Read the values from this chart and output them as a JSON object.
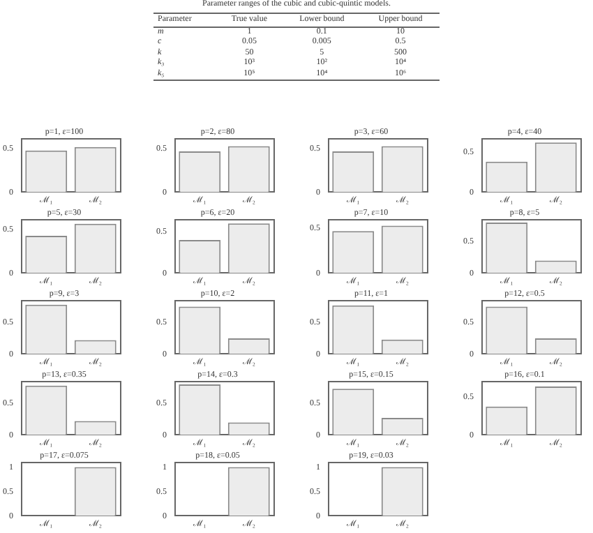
{
  "chart_data": [
    {
      "type": "other",
      "title": "Parameter ranges of the cubic and cubic-quintic models.",
      "annotations": [
        "Parameter",
        "True value",
        "Lower bound",
        "Upper bound",
        "m",
        "1",
        "0.1",
        "10",
        "c",
        "0.05",
        "0.005",
        "0.5",
        "k",
        "50",
        "5",
        "500",
        "k₃",
        "10³",
        "10²",
        "10⁴",
        "k₅",
        "10⁵",
        "10⁴",
        "10⁶"
      ]
    },
    {
      "type": "bar",
      "title": "p=1, ε=100",
      "categories": [
        "ℳ₁",
        "ℳ₂"
      ],
      "values": [
        0.48,
        0.52
      ],
      "color": "#ececec",
      "ylim": [
        0,
        0.62
      ],
      "yticks": [
        0,
        0.5
      ]
    },
    {
      "type": "bar",
      "title": "p=2, ε=80",
      "categories": [
        "ℳ₁",
        "ℳ₂"
      ],
      "values": [
        0.47,
        0.53
      ],
      "color": "#ececec",
      "ylim": [
        0,
        0.62
      ],
      "yticks": [
        0,
        0.5
      ]
    },
    {
      "type": "bar",
      "title": "p=3, ε=60",
      "categories": [
        "ℳ₁",
        "ℳ₂"
      ],
      "values": [
        0.47,
        0.53
      ],
      "color": "#ececec",
      "ylim": [
        0,
        0.62
      ],
      "yticks": [
        0,
        0.5
      ]
    },
    {
      "type": "bar",
      "title": "p=4, ε=40",
      "categories": [
        "ℳ₁",
        "ℳ₂"
      ],
      "values": [
        0.38,
        0.62
      ],
      "color": "#ececec",
      "ylim": [
        0,
        0.67
      ],
      "yticks": [
        0,
        0.5
      ]
    },
    {
      "type": "bar",
      "title": "p=5, ε=30",
      "categories": [
        "ℳ₁",
        "ℳ₂"
      ],
      "values": [
        0.43,
        0.57
      ],
      "color": "#ececec",
      "ylim": [
        0,
        0.62
      ],
      "yticks": [
        0,
        0.5
      ]
    },
    {
      "type": "bar",
      "title": "p=6, ε=20",
      "categories": [
        "ℳ₁",
        "ℳ₂"
      ],
      "values": [
        0.4,
        0.6
      ],
      "color": "#ececec",
      "ylim": [
        0,
        0.65
      ],
      "yticks": [
        0,
        0.5
      ]
    },
    {
      "type": "bar",
      "title": "p=7, ε=10",
      "categories": [
        "ℳ₁",
        "ℳ₂"
      ],
      "values": [
        0.47,
        0.53
      ],
      "color": "#ececec",
      "ylim": [
        0,
        0.6
      ],
      "yticks": [
        0,
        0.5
      ]
    },
    {
      "type": "bar",
      "title": "p=8, ε=5",
      "categories": [
        "ℳ₁",
        "ℳ₂"
      ],
      "values": [
        0.8,
        0.2
      ],
      "color": "#ececec",
      "ylim": [
        0,
        0.85
      ],
      "yticks": [
        0,
        0.5
      ]
    },
    {
      "type": "bar",
      "title": "p=9, ε=3",
      "categories": [
        "ℳ₁",
        "ℳ₂"
      ],
      "values": [
        0.78,
        0.22
      ],
      "color": "#ececec",
      "ylim": [
        0,
        0.85
      ],
      "yticks": [
        0,
        0.5
      ]
    },
    {
      "type": "bar",
      "title": "p=10, ε=2",
      "categories": [
        "ℳ₁",
        "ℳ₂"
      ],
      "values": [
        0.75,
        0.25
      ],
      "color": "#ececec",
      "ylim": [
        0,
        0.85
      ],
      "yticks": [
        0,
        0.5
      ]
    },
    {
      "type": "bar",
      "title": "p=11, ε=1",
      "categories": [
        "ℳ₁",
        "ℳ₂"
      ],
      "values": [
        0.77,
        0.23
      ],
      "color": "#ececec",
      "ylim": [
        0,
        0.85
      ],
      "yticks": [
        0,
        0.5
      ]
    },
    {
      "type": "bar",
      "title": "p=12, ε=0.5",
      "categories": [
        "ℳ₁",
        "ℳ₂"
      ],
      "values": [
        0.75,
        0.25
      ],
      "color": "#ececec",
      "ylim": [
        0,
        0.85
      ],
      "yticks": [
        0,
        0.5
      ]
    },
    {
      "type": "bar",
      "title": "p=13, ε=0.35",
      "categories": [
        "ℳ₁",
        "ℳ₂"
      ],
      "values": [
        0.78,
        0.22
      ],
      "color": "#ececec",
      "ylim": [
        0,
        0.85
      ],
      "yticks": [
        0,
        0.5
      ]
    },
    {
      "type": "bar",
      "title": "p=14, ε=0.3",
      "categories": [
        "ℳ₁",
        "ℳ₂"
      ],
      "values": [
        0.8,
        0.2
      ],
      "color": "#ececec",
      "ylim": [
        0,
        0.85
      ],
      "yticks": [
        0,
        0.5
      ]
    },
    {
      "type": "bar",
      "title": "p=15, ε=0.15",
      "categories": [
        "ℳ₁",
        "ℳ₂"
      ],
      "values": [
        0.73,
        0.27
      ],
      "color": "#ececec",
      "ylim": [
        0,
        0.85
      ],
      "yticks": [
        0,
        0.5
      ]
    },
    {
      "type": "bar",
      "title": "p=16, ε=0.1",
      "categories": [
        "ℳ₁",
        "ℳ₂"
      ],
      "values": [
        0.37,
        0.63
      ],
      "color": "#ececec",
      "ylim": [
        0,
        0.7
      ],
      "yticks": [
        0,
        0.5
      ]
    },
    {
      "type": "bar",
      "title": "p=17, ε=0.075",
      "categories": [
        "ℳ₁",
        "ℳ₂"
      ],
      "values": [
        0,
        1
      ],
      "color": "#ececec",
      "ylim": [
        0,
        1.1
      ],
      "yticks": [
        0,
        0.5,
        1
      ]
    },
    {
      "type": "bar",
      "title": "p=18, ε=0.05",
      "categories": [
        "ℳ₁",
        "ℳ₂"
      ],
      "values": [
        0,
        1
      ],
      "color": "#ececec",
      "ylim": [
        0,
        1.1
      ],
      "yticks": [
        0,
        0.5,
        1
      ]
    },
    {
      "type": "bar",
      "title": "p=19, ε=0.03",
      "categories": [
        "ℳ₁",
        "ℳ₂"
      ],
      "values": [
        0,
        1
      ],
      "color": "#ececec",
      "ylim": [
        0,
        1.1
      ],
      "yticks": [
        0,
        0.5,
        1
      ]
    }
  ]
}
